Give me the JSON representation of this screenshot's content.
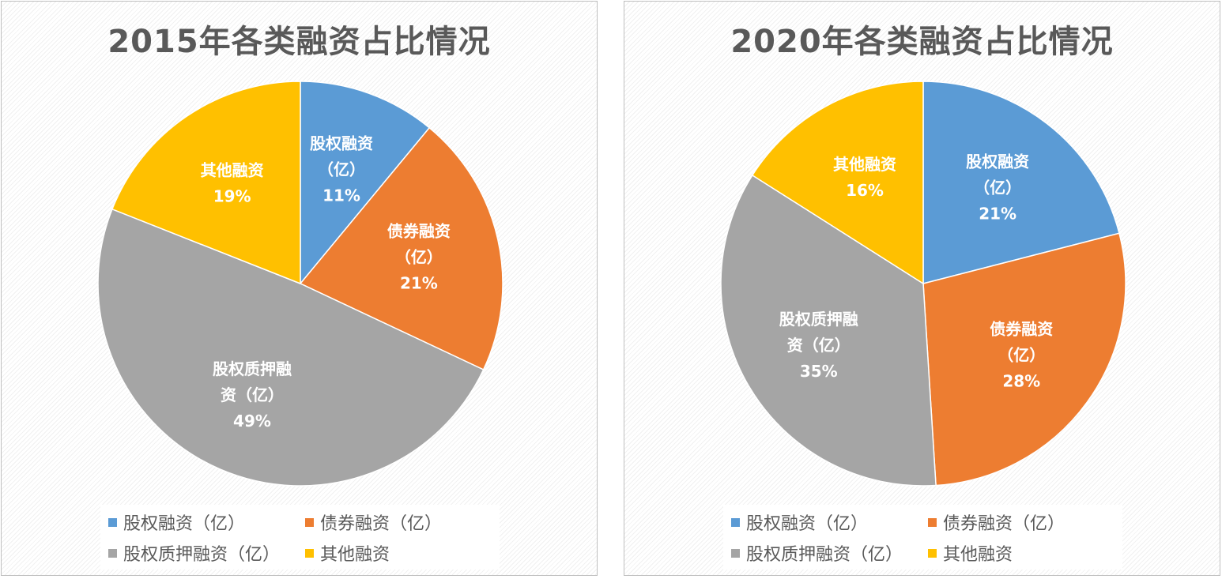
{
  "chart_data": [
    {
      "type": "pie",
      "title": "2015年各类融资占比情况",
      "categories": [
        "股权融资（亿）",
        "债券融资（亿）",
        "股权质押融资（亿）",
        "其他融资"
      ],
      "values": [
        11,
        21,
        49,
        19
      ],
      "data_labels": [
        [
          "股权融资",
          "（亿）",
          "11%"
        ],
        [
          "债券融资",
          "（亿）",
          "21%"
        ],
        [
          "股权质押融",
          "资（亿）",
          "49%"
        ],
        [
          "其他融资",
          "19%"
        ]
      ],
      "colors": [
        "#5B9BD5",
        "#ED7D31",
        "#A5A5A5",
        "#FFC000"
      ],
      "legend": "bottom",
      "legend_labels": [
        "股权融资（亿）",
        "债券融资（亿）",
        "股权质押融资（亿）",
        "其他融资"
      ]
    },
    {
      "type": "pie",
      "title": "2020年各类融资占比情况",
      "categories": [
        "股权融资（亿）",
        "债券融资（亿）",
        "股权质押融资（亿）",
        "其他融资"
      ],
      "values": [
        21,
        28,
        35,
        16
      ],
      "data_labels": [
        [
          "股权融资",
          "（亿）",
          "21%"
        ],
        [
          "债券融资",
          "（亿）",
          "28%"
        ],
        [
          "股权质押融",
          "资（亿）",
          "35%"
        ],
        [
          "其他融资",
          "16%"
        ]
      ],
      "colors": [
        "#5B9BD5",
        "#ED7D31",
        "#A5A5A5",
        "#FFC000"
      ],
      "legend": "bottom",
      "legend_labels": [
        "股权融资（亿）",
        "债券融资（亿）",
        "股权质押融资（亿）",
        "其他融资"
      ]
    }
  ]
}
